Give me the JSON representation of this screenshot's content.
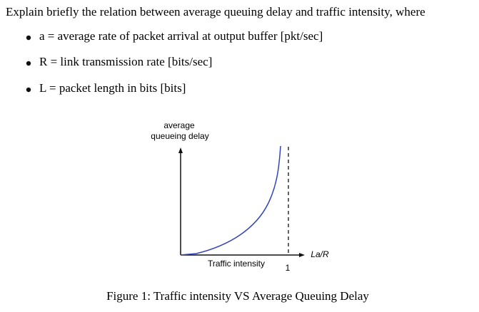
{
  "question": "Explain briefly the relation between average queuing delay and traffic intensity, where",
  "bullets": [
    "a = average rate of packet arrival at output buffer [pkt/sec]",
    "R = link transmission rate [bits/sec]",
    "L = packet length in bits [bits]"
  ],
  "figure": {
    "y_axis_label": [
      "average",
      "queueing delay"
    ],
    "x_axis_label": "La/R",
    "x_label": "Traffic intensity",
    "x_tick": "1",
    "caption": "Figure 1: Traffic intensity VS Average Queuing Delay"
  }
}
